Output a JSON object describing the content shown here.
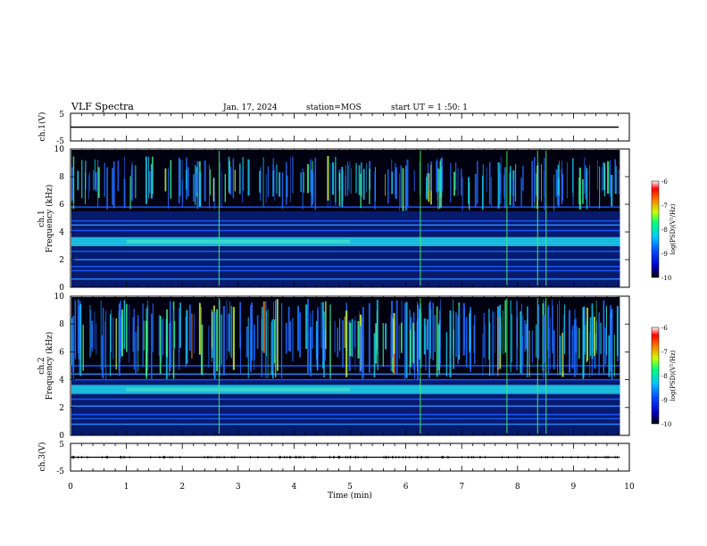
{
  "header": {
    "title": "VLF Spectra",
    "date": "Jan. 17, 2024",
    "station": "station=MOS",
    "start_ut": "start UT =  1 :50: 1"
  },
  "chart_data": [
    {
      "type": "line",
      "panel": "ch1-waveform",
      "ylabel": "ch.1(V)",
      "ylim": [
        -5,
        5
      ],
      "yticks": [
        "5",
        "-5"
      ],
      "trace_value": 0,
      "color": "#000000"
    },
    {
      "type": "heatmap",
      "panel": "ch1-spectrogram",
      "ylabel_line1": "ch.1",
      "ylabel_line2": "Frequency (kHz)",
      "ylim": [
        0,
        10
      ],
      "yticks": [
        "0",
        "2",
        "4",
        "6",
        "8",
        "10"
      ],
      "xlim": [
        0,
        10
      ],
      "colorbar": {
        "label": "log(PSD)(V²/Hz)",
        "range": [
          -10,
          -6
        ],
        "ticks": [
          "-6",
          "-7",
          "-8",
          "-9",
          "-10"
        ],
        "colors": [
          "#000000",
          "#0000c8",
          "#0050ff",
          "#00c8ff",
          "#00ff80",
          "#c8ff00",
          "#ff8000",
          "#ff0000",
          "#ffffff"
        ]
      },
      "bands_khz": [
        0.6,
        1.2,
        1.5,
        2.0,
        2.6,
        3.1,
        3.3,
        3.5,
        4.1,
        4.5,
        4.8,
        5.8
      ],
      "emission_range_khz": [
        5.5,
        9.5
      ],
      "vertical_lines_min": [
        2.65,
        6.25,
        7.8,
        8.35,
        8.5
      ]
    },
    {
      "type": "heatmap",
      "panel": "ch2-spectrogram",
      "ylabel_line1": "ch.2",
      "ylabel_line2": "Frequency (kHz)",
      "ylim": [
        0,
        10
      ],
      "yticks": [
        "0",
        "2",
        "4",
        "6",
        "8",
        "10"
      ],
      "xlim": [
        0,
        10
      ],
      "colorbar": {
        "label": "log(PSD)(V²/Hz)",
        "range": [
          -10,
          -6
        ],
        "ticks": [
          "-6",
          "-7",
          "-8",
          "-9",
          "-10"
        ],
        "colors": [
          "#000000",
          "#0000c8",
          "#0050ff",
          "#00c8ff",
          "#00ff80",
          "#c8ff00",
          "#ff8000",
          "#ff0000",
          "#ffffff"
        ]
      },
      "bands_khz": [
        0.8,
        1.2,
        1.5,
        2.1,
        2.6,
        3.1,
        3.3,
        3.5,
        4.0,
        4.4,
        5.0
      ],
      "emission_range_khz": [
        4.0,
        9.8
      ],
      "vertical_lines_min": [
        2.65,
        6.25,
        7.8,
        8.35,
        8.5
      ]
    },
    {
      "type": "line",
      "panel": "ch3-waveform",
      "ylabel": "ch.3(V)",
      "ylim": [
        -5,
        5
      ],
      "yticks": [
        "5",
        "-5"
      ],
      "trace_value": 0,
      "color": "#000000"
    }
  ],
  "x_axis": {
    "label": "Time (min)",
    "ticks": [
      "0",
      "1",
      "2",
      "3",
      "4",
      "5",
      "6",
      "7",
      "8",
      "9",
      "10"
    ],
    "range": [
      0,
      10
    ],
    "data_end": 9.83
  }
}
